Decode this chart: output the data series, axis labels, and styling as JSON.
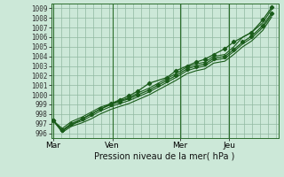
{
  "title": "",
  "xlabel": "Pression niveau de la mer( hPa )",
  "ylabel": "",
  "background_color": "#cce8d8",
  "grid_color": "#90b8a0",
  "line_color": "#1a5c1a",
  "ylim": [
    995.5,
    1009.5
  ],
  "yticks": [
    996,
    997,
    998,
    999,
    1000,
    1001,
    1002,
    1003,
    1004,
    1005,
    1006,
    1007,
    1008,
    1009
  ],
  "day_labels": [
    "Mar",
    "Ven",
    "Mer",
    "Jeu"
  ],
  "vline_x": [
    0.0,
    0.265,
    0.57,
    0.79
  ],
  "figsize": [
    3.2,
    2.0
  ],
  "dpi": 100,
  "series": [
    {
      "x": [
        0,
        0.04,
        0.08,
        0.13,
        0.17,
        0.21,
        0.26,
        0.3,
        0.34,
        0.38,
        0.43,
        0.47,
        0.51,
        0.55,
        0.6,
        0.64,
        0.68,
        0.72,
        0.77,
        0.81,
        0.85,
        0.89,
        0.94,
        0.98
      ],
      "y": [
        997.3,
        996.3,
        997.0,
        997.5,
        998.0,
        998.5,
        999.0,
        999.3,
        999.6,
        1000.0,
        1000.5,
        1001.0,
        1001.5,
        1002.0,
        1002.7,
        1003.0,
        1003.2,
        1003.8,
        1004.0,
        1004.7,
        1005.5,
        1006.1,
        1007.2,
        1008.5
      ],
      "markers": true
    },
    {
      "x": [
        0,
        0.04,
        0.08,
        0.13,
        0.17,
        0.21,
        0.26,
        0.3,
        0.34,
        0.38,
        0.43,
        0.47,
        0.51,
        0.55,
        0.6,
        0.64,
        0.68,
        0.72,
        0.77,
        0.81,
        0.85,
        0.89,
        0.94,
        0.98
      ],
      "y": [
        997.3,
        996.5,
        997.2,
        997.7,
        998.2,
        998.7,
        999.1,
        999.4,
        999.7,
        1000.2,
        1000.7,
        1001.2,
        1001.7,
        1002.2,
        1002.9,
        1003.2,
        1003.4,
        1004.0,
        1004.2,
        1005.0,
        1006.0,
        1006.5,
        1007.5,
        1008.9
      ],
      "markers": false
    },
    {
      "x": [
        0,
        0.04,
        0.08,
        0.13,
        0.17,
        0.21,
        0.26,
        0.3,
        0.34,
        0.38,
        0.43,
        0.47,
        0.51,
        0.55,
        0.6,
        0.64,
        0.68,
        0.72,
        0.77,
        0.81,
        0.85,
        0.89,
        0.94,
        0.98
      ],
      "y": [
        997.3,
        996.2,
        996.9,
        997.3,
        997.8,
        998.3,
        998.8,
        999.1,
        999.4,
        999.8,
        1000.3,
        1000.8,
        1001.3,
        1001.8,
        1002.5,
        1002.8,
        1003.0,
        1003.6,
        1003.8,
        1004.5,
        1005.3,
        1005.9,
        1007.0,
        1008.3
      ],
      "markers": false
    },
    {
      "x": [
        0,
        0.04,
        0.08,
        0.13,
        0.17,
        0.21,
        0.26,
        0.3,
        0.34,
        0.38,
        0.43,
        0.47,
        0.51,
        0.55,
        0.6,
        0.64,
        0.68,
        0.72,
        0.77,
        0.81,
        0.85,
        0.89,
        0.94,
        0.98
      ],
      "y": [
        997.3,
        996.1,
        996.7,
        997.1,
        997.5,
        998.0,
        998.5,
        998.8,
        999.1,
        999.5,
        1000.0,
        1000.5,
        1001.0,
        1001.5,
        1002.2,
        1002.5,
        1002.7,
        1003.3,
        1003.5,
        1004.2,
        1005.0,
        1005.6,
        1006.7,
        1008.1
      ],
      "markers": false
    },
    {
      "x": [
        0,
        0.04,
        0.13,
        0.21,
        0.26,
        0.3,
        0.34,
        0.38,
        0.43,
        0.51,
        0.55,
        0.6,
        0.64,
        0.68,
        0.72,
        0.77,
        0.81,
        0.89,
        0.94,
        0.98
      ],
      "y": [
        997.3,
        996.3,
        997.5,
        998.5,
        999.1,
        999.5,
        999.9,
        1000.4,
        1001.2,
        1001.8,
        1002.5,
        1003.0,
        1003.4,
        1003.7,
        1004.2,
        1004.8,
        1005.5,
        1006.5,
        1007.8,
        1009.1
      ],
      "markers": true
    }
  ]
}
